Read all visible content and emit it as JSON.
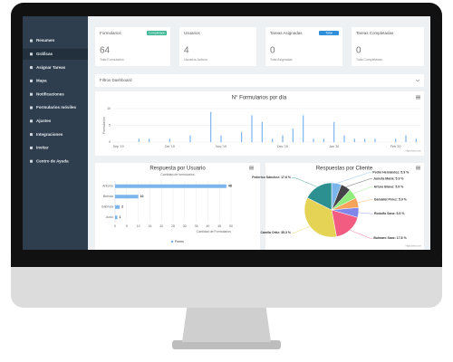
{
  "sidebar": {
    "items": [
      "Resumen",
      "Gráficas",
      "Asignar Tareas",
      "Mapa",
      "Notificaciones",
      "Formularios móviles",
      "Ajustes",
      "Integraciones",
      "Invitar",
      "Centro de Ayuda"
    ],
    "active": 1
  },
  "cards": [
    {
      "title": "Formularios",
      "badge": "Completado",
      "badge_color": "#3ab795",
      "value": 64,
      "caption": "Total Formularios"
    },
    {
      "title": "Usuarios",
      "value": 4,
      "caption": "Usuarios Activos"
    },
    {
      "title": "Tareas Asignadas",
      "badge": "Total",
      "badge_color": "#2f8fdb",
      "value": 0,
      "caption": "Total Asignadas"
    },
    {
      "title": "Tareas Completadas",
      "value": 0,
      "caption": "Total Completadas"
    }
  ],
  "filter": {
    "label": "Filtros Dashboard"
  },
  "chart_data": [
    {
      "type": "bar",
      "title": "N° Formularios por día",
      "y_label": "Formularios",
      "credits": "Highcharts.com",
      "categories": [
        "Sep '19",
        null,
        null,
        null,
        null,
        "Oct '19",
        null,
        null,
        null,
        null,
        "Nov '19",
        null,
        null,
        null,
        null,
        null,
        "Dec '19",
        null,
        null,
        null,
        null,
        "Jan '20",
        null,
        null,
        null,
        null,
        null,
        "Feb '20",
        null,
        null
      ],
      "values": [
        0,
        0,
        1,
        1,
        0,
        1,
        0,
        2,
        0,
        9,
        2,
        0,
        3,
        8,
        6,
        1,
        2,
        4,
        8,
        1,
        1,
        6,
        2,
        1,
        1,
        1,
        0,
        1,
        2,
        1
      ],
      "color": "#7cb5ec",
      "ylim": [
        0,
        10
      ],
      "yticks": [
        0,
        5,
        10
      ],
      "grid": true
    },
    {
      "type": "hbar",
      "title": "Respuesta por Usuario",
      "subtitle": "Cantidad de formularios",
      "x_label": "Cantidad de Formularios",
      "categories": [
        "Antonio",
        "Brenda",
        "Gabriela",
        "Junio"
      ],
      "series": [
        {
          "name": "Forms",
          "color": "#7cb5ec",
          "values": [
            48,
            10,
            2,
            1
          ]
        }
      ],
      "xlim": [
        0,
        50
      ],
      "xticks": [
        0,
        5,
        10,
        15,
        20,
        25,
        30,
        35,
        40,
        45,
        50
      ],
      "grid": true,
      "legend": "bottom"
    },
    {
      "type": "pie",
      "title": "Respuestas por Cliente",
      "credits": "Highcharts.com",
      "categories": [
        "Pedro Hernández",
        "Jumeta María",
        "Arturo Bravo",
        "Gamaliel Pérez",
        "Rodolfo Sanz",
        "Bulmaro Sanz",
        "Camila Ortiz",
        "Federico Sánchez"
      ],
      "values": [
        5.9,
        5.9,
        5.9,
        5.9,
        5.9,
        17.6,
        35.3,
        17.6
      ],
      "value_labels": [
        "Pedro Hernández: 5.9 %",
        "Jumeta María: 5.9 %",
        "Arturo Bravo: 5.9 %",
        "Gamaliel Pérez: 5.9 %",
        "Rodolfo Sanz: 5.9 %",
        "Bulmaro Sanz: 17.6 %",
        "Camila Ortiz: 35.3 %",
        "Federico Sánchez: 17.6 %"
      ],
      "colors": [
        "#7cb5ec",
        "#434348",
        "#90ed7d",
        "#f7a35c",
        "#8085e9",
        "#f15c80",
        "#e4d354",
        "#2b908f"
      ]
    }
  ]
}
